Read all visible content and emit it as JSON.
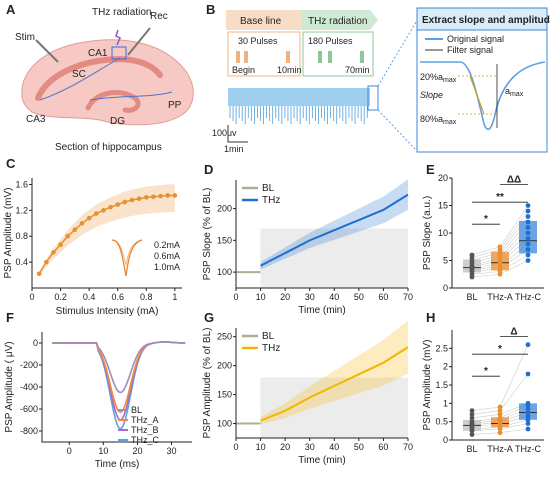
{
  "panel_letters": {
    "A": "A",
    "B": "B",
    "C": "C",
    "D": "D",
    "E": "E",
    "F": "F",
    "G": "G",
    "H": "H"
  },
  "panelA": {
    "thz_label": "THz radiation",
    "rec_label": "Rec",
    "stim_label": "Stim",
    "ca1": "CA1",
    "sc": "SC",
    "ca3": "CA3",
    "dg": "DG",
    "pp": "PP",
    "caption": "Section of hippocampus"
  },
  "panelB": {
    "baseline_title": "Base line",
    "baseline_pulses": "30 Pulses",
    "baseline_begin": "Begin",
    "baseline_end": "10min",
    "thz_title": "THz radiation",
    "thz_pulses": "180 Pulses",
    "thz_end": "70min",
    "scale_v": "100uv",
    "scale_t": "1min",
    "extract_title": "Extract slope and amplitude",
    "legend_original": "Original signal",
    "legend_filter": "Filter signal",
    "pct20": "20%a",
    "pct80": "80%a",
    "amax_sub": "max",
    "slope": "Slope",
    "amax": "a"
  },
  "colors": {
    "bl": "#a9b28f",
    "thz_blue": "#1f6fd1",
    "thz_gold": "#f4b400",
    "thz_orange": "#f08c3a",
    "curve_orange": "#ee8a30",
    "dot_orange": "#e8912d",
    "gray_box": "#bdbdbd",
    "blue_box": "#3b88d8"
  },
  "chart_data": [
    {
      "type": "line",
      "panel": "C",
      "xlabel": "Stimulus Intensity (mA)",
      "ylabel": "PSP Amplitude (mV)",
      "xlim": [
        0,
        1.05
      ],
      "ylim": [
        0.0,
        1.7
      ],
      "xticks": [
        "0",
        "0.2",
        "0.4",
        "0.6",
        "0.8",
        "1"
      ],
      "yticks": [
        "0.4",
        "0.8",
        "1.2",
        "1.6"
      ],
      "x": [
        0.05,
        0.1,
        0.15,
        0.2,
        0.25,
        0.3,
        0.35,
        0.4,
        0.45,
        0.5,
        0.55,
        0.6,
        0.65,
        0.7,
        0.75,
        0.8,
        0.85,
        0.9,
        0.95,
        1.0
      ],
      "y": [
        0.22,
        0.4,
        0.55,
        0.67,
        0.8,
        0.9,
        1.0,
        1.08,
        1.15,
        1.2,
        1.25,
        1.29,
        1.33,
        1.36,
        1.38,
        1.4,
        1.41,
        1.42,
        1.43,
        1.43
      ],
      "inset_labels": [
        "0.2mA",
        "0.6mA",
        "1.0mA"
      ]
    },
    {
      "type": "line",
      "panel": "D",
      "xlabel": "Time (min)",
      "ylabel": "PSP Slope  (% of BL)",
      "xlim": [
        0,
        70
      ],
      "ylim": [
        75,
        245
      ],
      "xticks": [
        "0",
        "10",
        "20",
        "30",
        "40",
        "50",
        "60",
        "70"
      ],
      "yticks": [
        "100",
        "150",
        "200"
      ],
      "series": [
        {
          "name": "BL",
          "x": [
            0,
            10
          ],
          "y": [
            100,
            100
          ]
        },
        {
          "name": "THz",
          "x": [
            10,
            15,
            20,
            25,
            30,
            35,
            40,
            45,
            50,
            55,
            60,
            65,
            70
          ],
          "y": [
            110,
            120,
            130,
            140,
            150,
            158,
            166,
            174,
            182,
            190,
            198,
            210,
            222
          ]
        }
      ]
    },
    {
      "type": "box",
      "panel": "E",
      "ylabel": "PSP Slope (a.u.)",
      "ylim": [
        0,
        20
      ],
      "yticks": [
        "0",
        "5",
        "10",
        "15",
        "20"
      ],
      "categories": [
        "BL",
        "THz-A",
        "THz-C"
      ],
      "points": [
        [
          2,
          2.5,
          3,
          3.2,
          3.5,
          3.8,
          4,
          4.5,
          5,
          5.5,
          6
        ],
        [
          2.5,
          3,
          3.5,
          4,
          4.5,
          5,
          5.5,
          6,
          6.5,
          7,
          7.5
        ],
        [
          5,
          6,
          7,
          8,
          9,
          10,
          11,
          12,
          13,
          14,
          15
        ]
      ],
      "box": [
        [
          2.8,
          3.7,
          5.2
        ],
        [
          3.2,
          4.6,
          6.6
        ],
        [
          6.3,
          8.6,
          12.2
        ]
      ],
      "sig_labels": [
        "*",
        "**",
        "ΔΔ"
      ]
    },
    {
      "type": "line",
      "panel": "F",
      "xlabel": "Time  (ms)",
      "ylabel": "PSP Amplitude  ( μV)",
      "xlim": [
        -8,
        36
      ],
      "ylim": [
        -900,
        100
      ],
      "xticks": [
        "0",
        "10",
        "20",
        "30"
      ],
      "yticks": [
        "0",
        "-200",
        "-400",
        "-600",
        "-800"
      ],
      "legend": [
        "BL",
        "THz_A",
        "THz_B",
        "THz_C"
      ],
      "series": [
        {
          "name": "BL",
          "peak": -450,
          "color": "#9b8fb8"
        },
        {
          "name": "THz_A",
          "peak": -630,
          "color": "#f08c3a"
        },
        {
          "name": "THz_B",
          "peak": -700,
          "color": "#b26ab6"
        },
        {
          "name": "THz_C",
          "peak": -780,
          "color": "#5aa0e6"
        }
      ]
    },
    {
      "type": "line",
      "panel": "G",
      "xlabel": "Time  (min)",
      "ylabel": "PSP Amplitude  (% of BL)",
      "xlim": [
        0,
        70
      ],
      "ylim": [
        75,
        265
      ],
      "xticks": [
        "0",
        "10",
        "20",
        "30",
        "40",
        "50",
        "60",
        "70"
      ],
      "yticks": [
        "100",
        "150",
        "200",
        "250"
      ],
      "series": [
        {
          "name": "BL",
          "x": [
            0,
            10
          ],
          "y": [
            100,
            100
          ]
        },
        {
          "name": "THz",
          "x": [
            10,
            20,
            30,
            40,
            50,
            60,
            70
          ],
          "y": [
            105,
            122,
            145,
            165,
            185,
            205,
            232
          ]
        }
      ]
    },
    {
      "type": "box",
      "panel": "H",
      "ylabel": "PSP Amplitude  (mV)",
      "ylim": [
        0,
        3
      ],
      "yticks": [
        "0",
        "0.5",
        "1",
        "1.5",
        "2",
        "2.5"
      ],
      "categories": [
        "BL",
        "THz-A",
        "THz-C"
      ],
      "points": [
        [
          0.15,
          0.25,
          0.3,
          0.35,
          0.4,
          0.45,
          0.5,
          0.6,
          0.7,
          0.8
        ],
        [
          0.2,
          0.3,
          0.35,
          0.45,
          0.5,
          0.55,
          0.6,
          0.7,
          0.8,
          0.9
        ],
        [
          0.3,
          0.45,
          0.55,
          0.65,
          0.75,
          0.85,
          0.95,
          1.0,
          1.8,
          2.6
        ]
      ],
      "box": [
        [
          0.25,
          0.4,
          0.55
        ],
        [
          0.35,
          0.45,
          0.62
        ],
        [
          0.55,
          0.75,
          1.0
        ]
      ],
      "sig_labels": [
        "*",
        "*",
        "Δ"
      ]
    }
  ]
}
